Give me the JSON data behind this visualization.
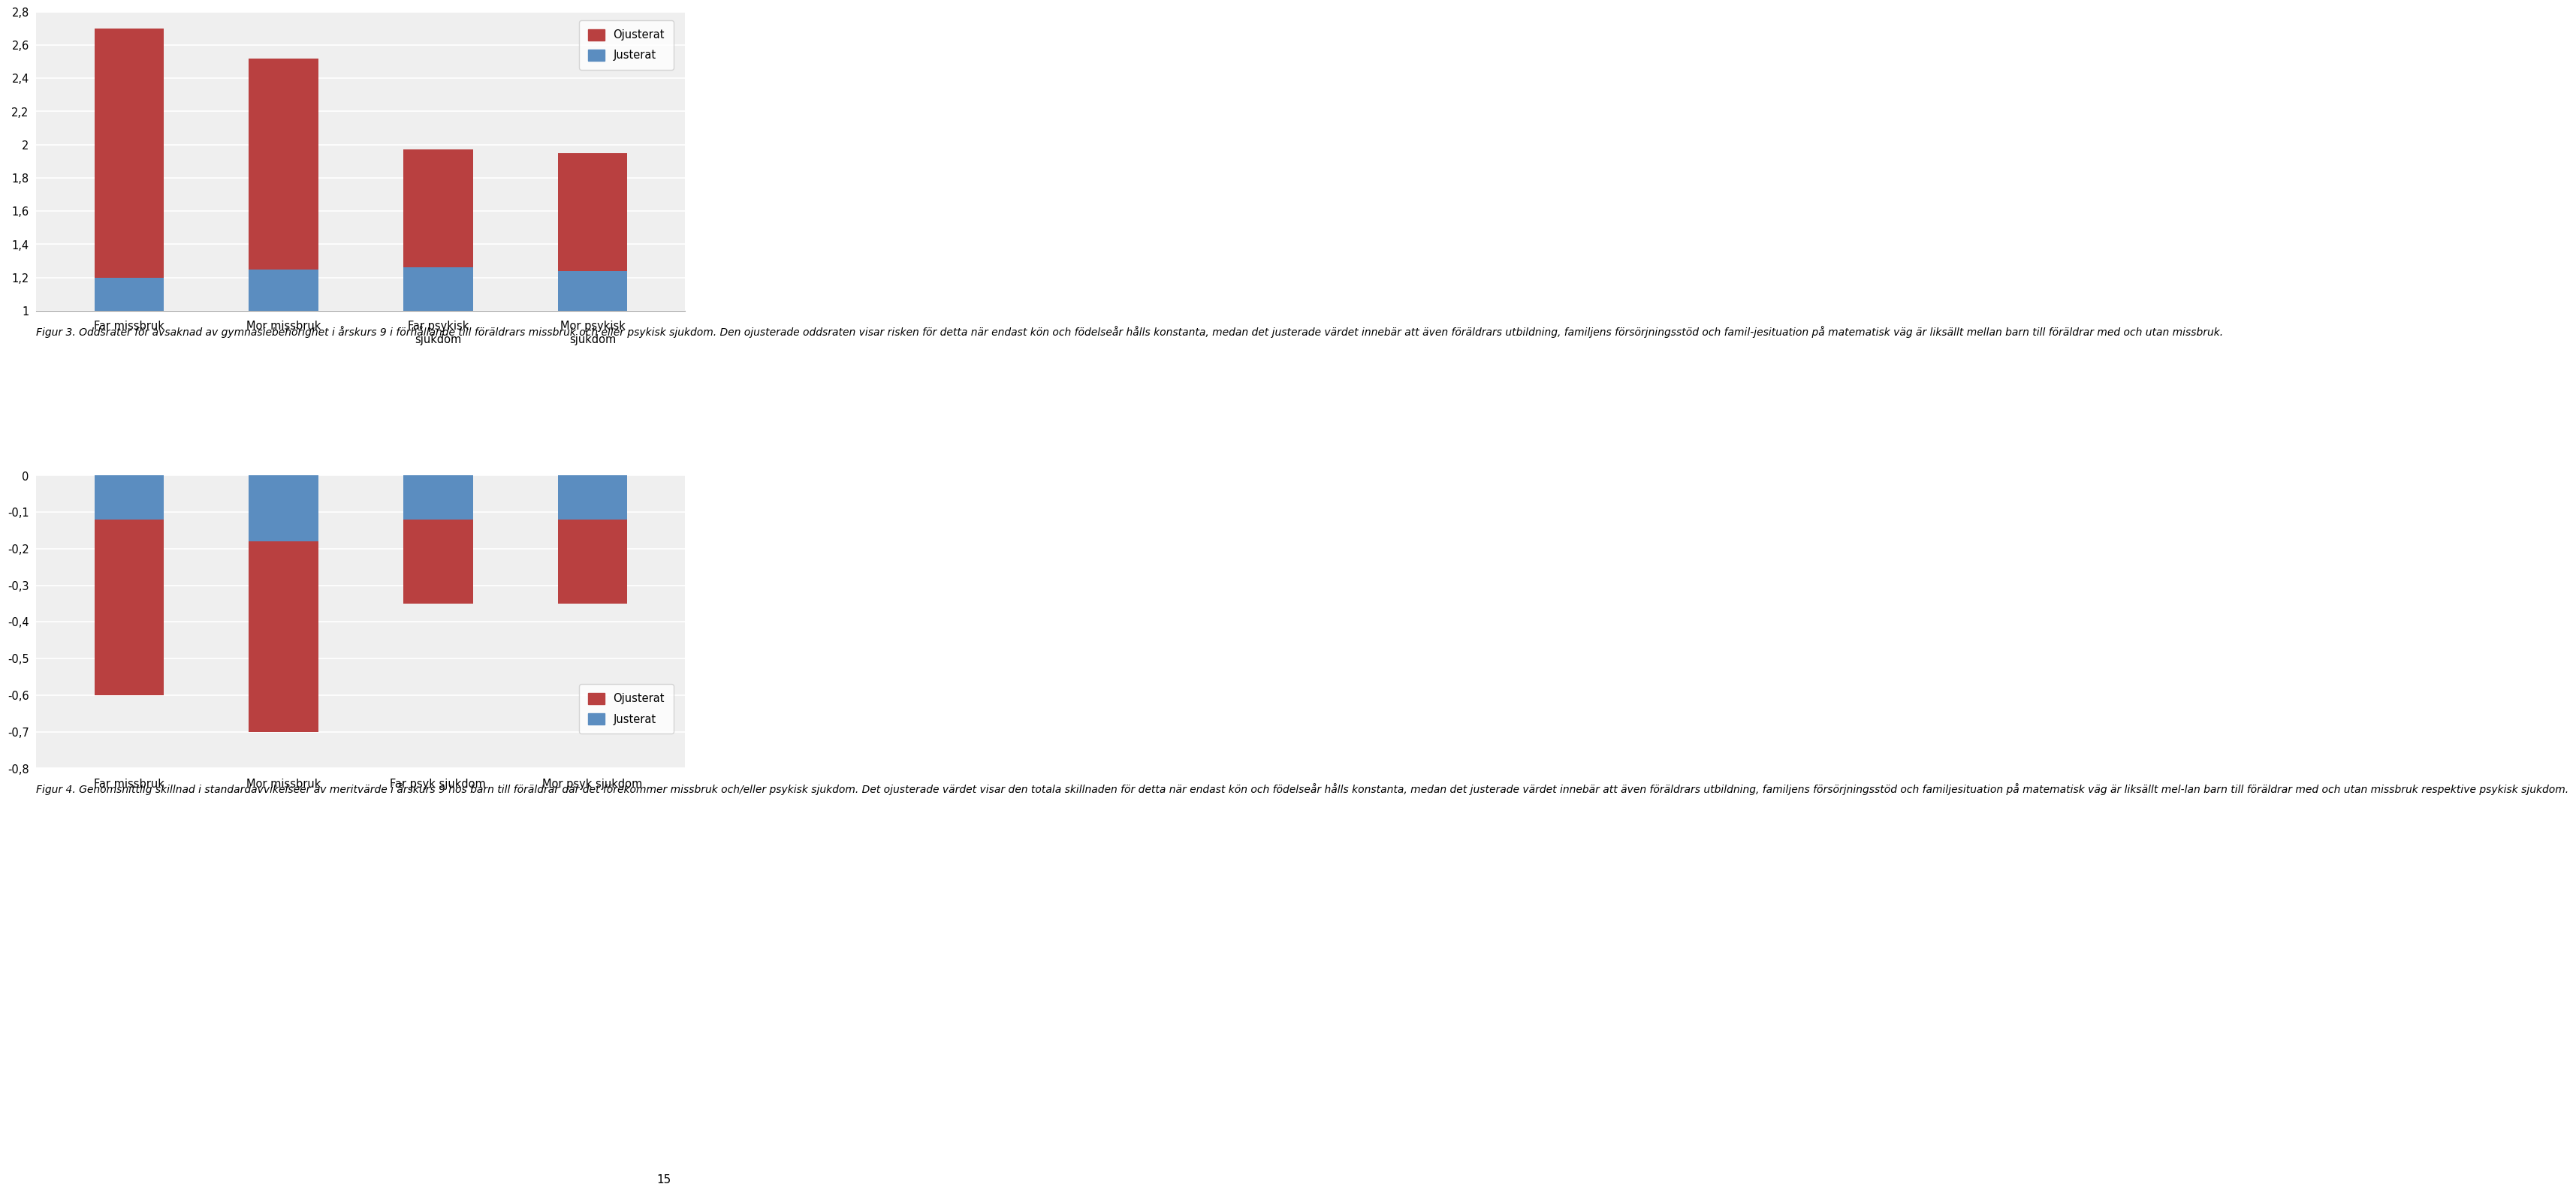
{
  "chart1": {
    "categories": [
      "Far missbruk",
      "Mor missbruk",
      "Far psykisk\nsjukdom",
      "Mor psykisk\nsjukdom"
    ],
    "justerat": [
      1.2,
      1.25,
      1.26,
      1.24
    ],
    "ojusterat_total": [
      2.7,
      2.52,
      1.97,
      1.95
    ],
    "ylim": [
      1.0,
      2.8
    ],
    "yticks": [
      1.0,
      1.2,
      1.4,
      1.6,
      1.8,
      2.0,
      2.2,
      2.4,
      2.6,
      2.8
    ],
    "yticklabels": [
      "1",
      "1,2",
      "1,4",
      "1,6",
      "1,8",
      "2",
      "2,2",
      "2,4",
      "2,6",
      "2,8"
    ],
    "color_ojusterat": "#B94040",
    "color_justerat": "#5B8DC0",
    "legend_ojusterat": "Ojusterat",
    "legend_justerat": "Justerat"
  },
  "chart2": {
    "categories": [
      "Far missbruk",
      "Mor missbruk",
      "Far psyk sjukdom",
      "Mor psyk sjukdom"
    ],
    "ojusterat": [
      -0.6,
      -0.7,
      -0.35,
      -0.35
    ],
    "justerat": [
      -0.12,
      -0.18,
      -0.12,
      -0.12
    ],
    "ylim": [
      -0.8,
      0.0
    ],
    "yticks": [
      -0.8,
      -0.7,
      -0.6,
      -0.5,
      -0.4,
      -0.3,
      -0.2,
      -0.1,
      0.0
    ],
    "yticklabels": [
      "-0,8",
      "-0,7",
      "-0,6",
      "-0,5",
      "-0,4",
      "-0,3",
      "-0,2",
      "-0,1",
      "0"
    ],
    "color_ojusterat": "#B94040",
    "color_justerat": "#5B8DC0",
    "legend_ojusterat": "Ojusterat",
    "legend_justerat": "Justerat"
  },
  "figur3_text": "Figur 3. Oddsrater för avsaknad av gymnasiebehörighet i årskurs 9 i förhållande till föräldrars missbruk och eller psykisk sjukdom. Den ojusterade oddsraten visar risken för detta när endast kön och födelseår hålls konstanta, medan det justerade värdet innebär att även föräldrars utbildning, familjens försörjningsstöd och famil-jesituation på matematisk väg är liksällt mellan barn till föräldrar med och utan missbruk.",
  "figur4_text": "Figur 4. Genomsnittlig skillnad i standardavvikelseer av meritvärde i årskurs 9 hos barn till föräldrar där det förekommer missbruk och/eller psykisk sjukdom. Det ojusterade värdet visar den totala skillnaden för detta när endast kön och födelseår hålls konstanta, medan det justerade värdet innebär att även föräldrars utbildning, familjens försörjningsstöd och familjesituation på matematisk väg är liksällt mel-lan barn till föräldrar med och utan missbruk respektive psykisk sjukdom.",
  "page_number": "15",
  "background_color": "#FFFFFF",
  "chart_bg": "#EFEFEF"
}
